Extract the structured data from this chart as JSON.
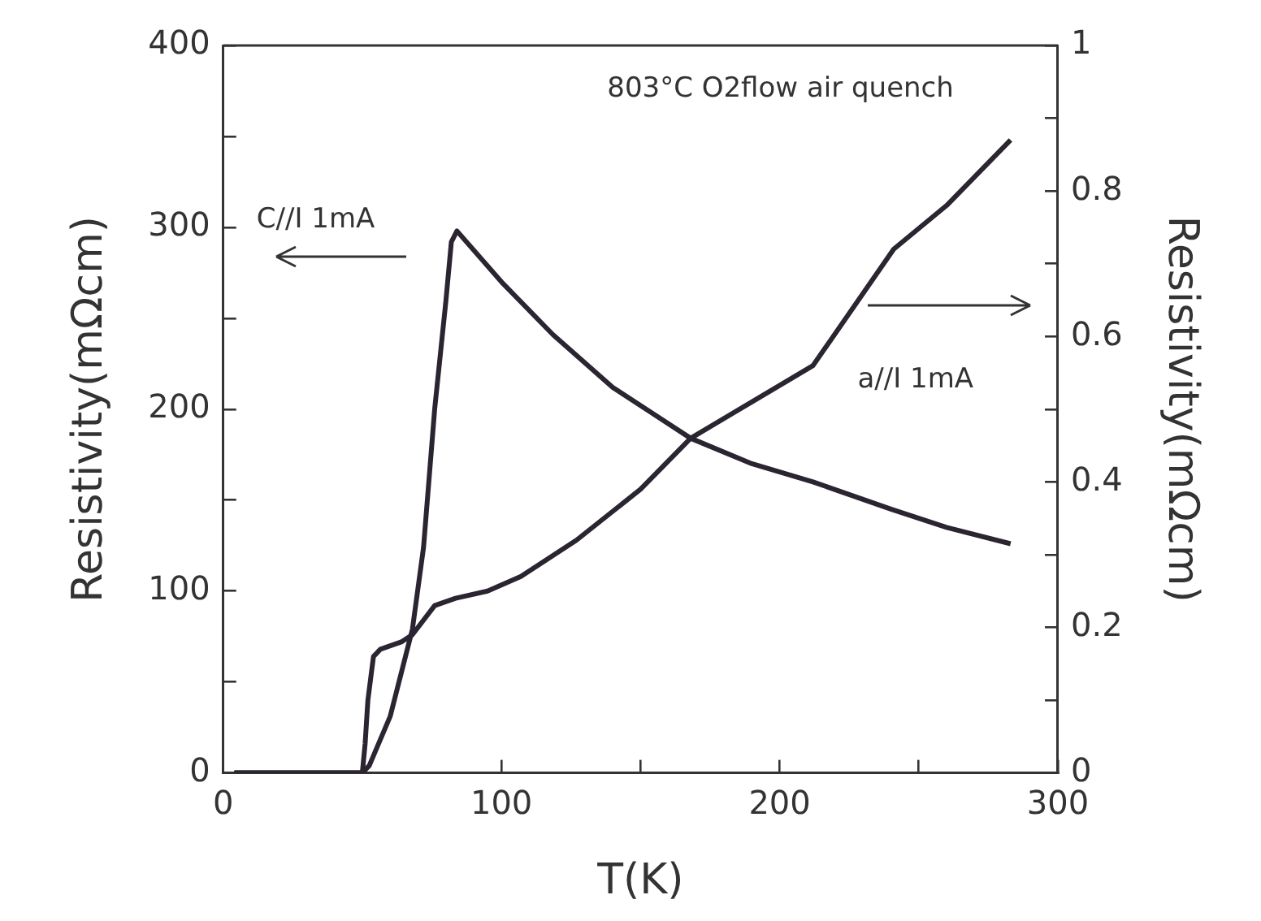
{
  "chart_data": {
    "type": "line",
    "xlabel": "T(K)",
    "ylabel": "Resistivity(mΩcm)",
    "y2label": "Resistivity(mΩcm)",
    "annotations": [
      "803°C O2flow air quench",
      "C//I 1mA",
      "a//I 1mA"
    ],
    "xlim": [
      0,
      300
    ],
    "xticks": [
      0,
      {
        "value": 50,
        "label": null
      },
      100,
      {
        "value": 150,
        "label": null
      },
      200,
      {
        "value": 250,
        "label": null
      },
      300
    ],
    "ylim": [
      0,
      400
    ],
    "yticks": [
      0,
      {
        "value": 50,
        "label": null
      },
      100,
      {
        "value": 150,
        "label": null
      },
      200,
      {
        "value": 250,
        "label": null
      },
      300,
      {
        "value": 350,
        "label": null
      },
      400
    ],
    "y2lim": [
      0,
      1
    ],
    "y2ticks": [
      0,
      {
        "value": 0.1,
        "label": null
      },
      0.2,
      {
        "value": 0.3,
        "label": null
      },
      0.4,
      {
        "value": 0.5,
        "label": null
      },
      0.6,
      {
        "value": 0.7,
        "label": null
      },
      0.8,
      {
        "value": 0.9,
        "label": null
      },
      1
    ],
    "grid": false,
    "legend": false,
    "marker": "none",
    "line_style": "solid",
    "series": [
      {
        "color": "#2a2530",
        "x": [
          4,
          30,
          50,
          52.5,
          60,
          68,
          72,
          76,
          80,
          82,
          84,
          100,
          118.5,
          140,
          168,
          190,
          212,
          240,
          260,
          283
        ],
        "values": [
          0,
          0,
          0,
          4,
          31,
          79,
          124,
          200,
          259,
          292,
          298,
          270,
          241,
          212,
          184,
          170,
          160,
          145,
          135,
          126
        ]
      },
      {
        "color": "#2a2530",
        "axis": "y2",
        "x": [
          4,
          30,
          50,
          51,
          52,
          54,
          56.5,
          64,
          68,
          76,
          83.5,
          95,
          107,
          127,
          150,
          168,
          190,
          212,
          241,
          260,
          283
        ],
        "values": [
          0,
          0,
          0,
          0.04,
          0.1,
          0.16,
          0.17,
          0.18,
          0.19,
          0.23,
          0.24,
          0.25,
          0.27,
          0.32,
          0.39,
          0.46,
          0.51,
          0.56,
          0.72,
          0.78,
          0.87
        ]
      }
    ]
  }
}
